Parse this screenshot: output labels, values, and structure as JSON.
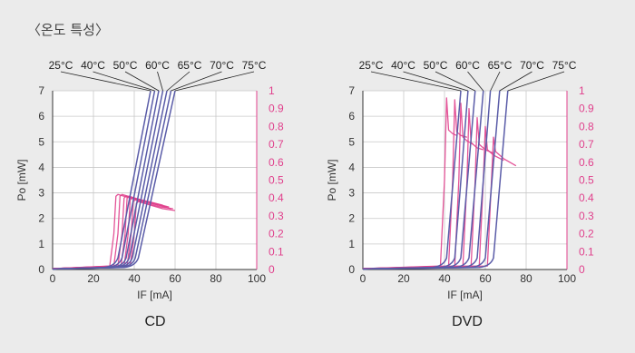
{
  "page": {
    "section_title": "〈온도 특성〉"
  },
  "chart_data": [
    {
      "type": "line",
      "caption": "CD",
      "xlabel": "IF [mA]",
      "ylabel": "Po [mW]",
      "xlim": [
        0,
        100
      ],
      "ylim": [
        0,
        7
      ],
      "y2lim": [
        0,
        1
      ],
      "x_ticks": [
        "0",
        "20",
        "40",
        "60",
        "80",
        "100"
      ],
      "y_ticks": [
        "0",
        "1",
        "2",
        "3",
        "4",
        "5",
        "6",
        "7"
      ],
      "y2_ticks": [
        "0",
        "0.1",
        "0.2",
        "0.3",
        "0.4",
        "0.5",
        "0.6",
        "0.7",
        "0.8",
        "0.9",
        "1"
      ],
      "grid": true,
      "legend_labels": [
        "25°C",
        "40°C",
        "50°C",
        "60°C",
        "65°C",
        "70°C",
        "75°C"
      ],
      "po_color": "#5a5ca8",
      "eff_color": "#e0408c",
      "series_po": [
        {
          "name": "25°C",
          "threshold": 31,
          "top_x": 48
        },
        {
          "name": "40°C",
          "threshold": 33,
          "top_x": 50
        },
        {
          "name": "50°C",
          "threshold": 35,
          "top_x": 52
        },
        {
          "name": "60°C",
          "threshold": 36.5,
          "top_x": 54
        },
        {
          "name": "65°C",
          "threshold": 38,
          "top_x": 56
        },
        {
          "name": "70°C",
          "threshold": 39.5,
          "top_x": 58
        },
        {
          "name": "75°C",
          "threshold": 41,
          "top_x": 60
        }
      ],
      "series_eff": [
        {
          "name": "25°C",
          "x": [
            28,
            30,
            31,
            32,
            38,
            45,
            52
          ],
          "y": [
            0.02,
            0.2,
            0.41,
            0.42,
            0.4,
            0.38,
            0.36
          ]
        },
        {
          "name": "40°C",
          "x": [
            30,
            32,
            33,
            34,
            40,
            47,
            54
          ],
          "y": [
            0.02,
            0.2,
            0.41,
            0.42,
            0.4,
            0.38,
            0.36
          ]
        },
        {
          "name": "50°C",
          "x": [
            32,
            34,
            35,
            36,
            42,
            49,
            56
          ],
          "y": [
            0.02,
            0.2,
            0.4,
            0.41,
            0.39,
            0.37,
            0.35
          ]
        },
        {
          "name": "60°C",
          "x": [
            33.5,
            35.5,
            36.5,
            37.5,
            43,
            50,
            57
          ],
          "y": [
            0.02,
            0.2,
            0.4,
            0.41,
            0.39,
            0.37,
            0.35
          ]
        },
        {
          "name": "65°C",
          "x": [
            35,
            37,
            38,
            39,
            45,
            52,
            58
          ],
          "y": [
            0.02,
            0.2,
            0.39,
            0.4,
            0.38,
            0.36,
            0.34
          ]
        },
        {
          "name": "70°C",
          "x": [
            36.5,
            38.5,
            39.5,
            40.5,
            46,
            53,
            59
          ],
          "y": [
            0.02,
            0.2,
            0.38,
            0.39,
            0.37,
            0.35,
            0.34
          ]
        },
        {
          "name": "75°C",
          "x": [
            38,
            40,
            41,
            42,
            48,
            54,
            60
          ],
          "y": [
            0.02,
            0.2,
            0.37,
            0.38,
            0.36,
            0.34,
            0.33
          ]
        }
      ]
    },
    {
      "type": "line",
      "caption": "DVD",
      "xlabel": "IF [mA]",
      "ylabel": "Po [mW]",
      "xlim": [
        0,
        100
      ],
      "ylim": [
        0,
        7
      ],
      "y2lim": [
        0,
        1
      ],
      "x_ticks": [
        "0",
        "20",
        "40",
        "60",
        "80",
        "100"
      ],
      "y_ticks": [
        "0",
        "1",
        "2",
        "3",
        "4",
        "5",
        "6",
        "7"
      ],
      "y2_ticks": [
        "0",
        "0.1",
        "0.2",
        "0.3",
        "0.4",
        "0.5",
        "0.6",
        "0.7",
        "0.8",
        "0.9",
        "1"
      ],
      "grid": true,
      "legend_labels": [
        "25°C",
        "40°C",
        "50°C",
        "60°C",
        "65°C",
        "70°C",
        "75°C"
      ],
      "po_color": "#5a5ca8",
      "eff_color": "#e0408c",
      "series_po": [
        {
          "name": "25°C",
          "threshold": 40,
          "top_x": 48
        },
        {
          "name": "40°C",
          "threshold": 44,
          "top_x": 51.5
        },
        {
          "name": "50°C",
          "threshold": 47,
          "top_x": 55
        },
        {
          "name": "60°C",
          "threshold": 51,
          "top_x": 59
        },
        {
          "name": "65°C",
          "threshold": 55,
          "top_x": 62.5
        },
        {
          "name": "70°C",
          "threshold": 59,
          "top_x": 67
        },
        {
          "name": "75°C",
          "threshold": 63,
          "top_x": 71
        }
      ],
      "series_eff": [
        {
          "name": "25°C",
          "x": [
            38,
            40,
            41,
            42,
            44,
            46
          ],
          "y": [
            0.02,
            0.5,
            0.96,
            0.78,
            0.76,
            0.75
          ]
        },
        {
          "name": "40°C",
          "x": [
            42,
            44,
            45,
            46,
            48,
            51
          ],
          "y": [
            0.02,
            0.5,
            0.95,
            0.77,
            0.75,
            0.74
          ]
        },
        {
          "name": "50°C",
          "x": [
            45,
            47,
            48,
            49,
            51,
            54
          ],
          "y": [
            0.02,
            0.5,
            0.93,
            0.74,
            0.72,
            0.7
          ]
        },
        {
          "name": "60°C",
          "x": [
            49,
            51,
            52,
            53,
            56,
            59
          ],
          "y": [
            0.02,
            0.5,
            0.9,
            0.71,
            0.68,
            0.67
          ]
        },
        {
          "name": "65°C",
          "x": [
            53,
            55,
            56,
            57,
            60,
            64
          ],
          "y": [
            0.02,
            0.5,
            0.85,
            0.7,
            0.67,
            0.65
          ]
        },
        {
          "name": "70°C",
          "x": [
            57,
            59,
            60,
            61,
            64,
            69
          ],
          "y": [
            0.02,
            0.5,
            0.8,
            0.67,
            0.64,
            0.61
          ]
        },
        {
          "name": "75°C",
          "x": [
            61,
            63,
            64,
            65,
            69,
            75
          ],
          "y": [
            0.02,
            0.5,
            0.74,
            0.66,
            0.62,
            0.58
          ]
        }
      ]
    }
  ]
}
